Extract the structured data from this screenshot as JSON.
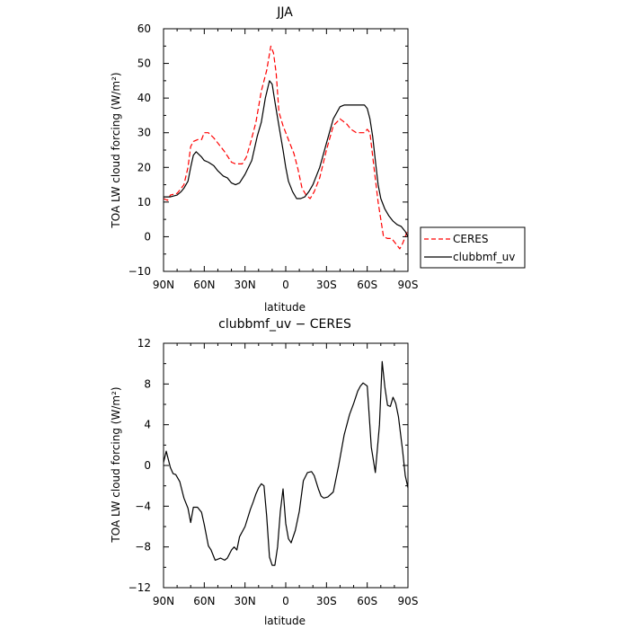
{
  "chart_data": [
    {
      "type": "line",
      "title": "JJA",
      "xlabel": "latitude",
      "ylabel": "TOA LW cloud forcing (W/m²)",
      "xlim": [
        90,
        -90
      ],
      "ylim": [
        -10,
        60
      ],
      "xticks": [
        {
          "value": 90,
          "label": "90N"
        },
        {
          "value": 60,
          "label": "60N"
        },
        {
          "value": 30,
          "label": "30N"
        },
        {
          "value": 0,
          "label": "0"
        },
        {
          "value": -30,
          "label": "30S"
        },
        {
          "value": -60,
          "label": "60S"
        },
        {
          "value": -90,
          "label": "90S"
        }
      ],
      "yticks": [
        -10,
        0,
        10,
        20,
        30,
        40,
        50,
        60
      ],
      "legend": "right, outside plot",
      "series": [
        {
          "name": "CERES",
          "color": "#ff0000",
          "dash": "dashed",
          "x": [
            90,
            87,
            85,
            80,
            75,
            72,
            70,
            68,
            65,
            62,
            60,
            57,
            53,
            48,
            45,
            40,
            37,
            32,
            29,
            26,
            22,
            18,
            14,
            11,
            9,
            7,
            5,
            2,
            0,
            -3,
            -6,
            -9,
            -12,
            -15,
            -18,
            -21,
            -25,
            -30,
            -35,
            -40,
            -45,
            -48,
            -52,
            -55,
            -58,
            -60,
            -62,
            -65,
            -68,
            -72,
            -75,
            -78,
            -81,
            -84,
            -86,
            -88,
            -90
          ],
          "y": [
            11,
            10.5,
            12,
            12.5,
            15,
            20,
            26,
            27.5,
            28,
            28,
            30,
            30,
            28.5,
            26,
            24.5,
            21.5,
            21,
            21,
            23,
            27,
            33,
            42,
            48,
            55,
            53,
            47,
            36,
            32,
            30,
            27,
            24,
            19.5,
            14,
            12,
            11,
            13,
            17,
            25,
            32,
            34,
            32.5,
            31,
            30,
            30,
            30,
            31,
            30,
            20,
            10,
            0,
            -0.5,
            -0.5,
            -2,
            -3.5,
            -2,
            0,
            2
          ]
        },
        {
          "name": "clubbmf_uv",
          "color": "#000000",
          "dash": "solid",
          "x": [
            90,
            85,
            80,
            77,
            75,
            72,
            70,
            68,
            66,
            62,
            60,
            57,
            53,
            50,
            46,
            43,
            40,
            37,
            34,
            30,
            25,
            21,
            18,
            15,
            12,
            10,
            8,
            5,
            2,
            0,
            -2,
            -5,
            -8,
            -11,
            -14,
            -17,
            -20,
            -25,
            -30,
            -35,
            -40,
            -43,
            -45,
            -48,
            -52,
            -55,
            -58,
            -60,
            -62,
            -64,
            -66,
            -68,
            -70,
            -73,
            -76,
            -79,
            -82,
            -85,
            -88,
            -90
          ],
          "y": [
            11.5,
            11.5,
            12,
            13,
            14,
            16,
            20,
            23.5,
            24.5,
            23,
            22,
            21.5,
            20.5,
            19,
            17.5,
            17,
            15.5,
            15,
            15.5,
            18,
            22,
            29,
            33,
            40,
            45,
            44,
            39,
            32,
            25,
            20,
            16,
            13,
            11,
            11,
            11.5,
            13,
            15,
            20,
            27,
            34,
            37.5,
            38,
            38,
            38,
            38,
            38,
            38,
            37,
            34,
            29,
            22,
            15,
            11,
            8,
            6,
            4.5,
            3.5,
            3,
            1.5,
            0
          ]
        }
      ]
    },
    {
      "type": "line",
      "title": "clubbmf_uv − CERES",
      "xlabel": "latitude",
      "ylabel": "TOA LW cloud forcing (W/m²)",
      "xlim": [
        90,
        -90
      ],
      "ylim": [
        -12,
        12
      ],
      "xticks": [
        {
          "value": 90,
          "label": "90N"
        },
        {
          "value": 60,
          "label": "60N"
        },
        {
          "value": 30,
          "label": "30N"
        },
        {
          "value": 0,
          "label": "0"
        },
        {
          "value": -30,
          "label": "30S"
        },
        {
          "value": -60,
          "label": "60S"
        },
        {
          "value": -90,
          "label": "90S"
        }
      ],
      "yticks": [
        -12,
        -8,
        -4,
        0,
        4,
        8,
        12
      ],
      "series": [
        {
          "color": "#000000",
          "x": [
            90,
            88,
            85,
            83,
            81,
            78,
            75,
            72,
            70,
            68,
            65,
            62,
            60,
            57,
            55,
            52,
            50,
            48,
            45,
            43,
            40,
            38,
            36,
            34,
            30,
            26,
            24,
            22,
            20,
            18,
            16,
            14,
            12,
            10,
            8,
            6,
            4,
            2,
            0,
            -2,
            -4,
            -7,
            -10,
            -13,
            -16,
            -19,
            -21,
            -24,
            -26,
            -28,
            -31,
            -35,
            -39,
            -43,
            -47,
            -50,
            -53,
            -55,
            -57,
            -60,
            -63,
            -66,
            -69,
            -71,
            -73,
            -75,
            -77,
            -79,
            -81,
            -83,
            -86,
            -88,
            -90
          ],
          "y": [
            0.3,
            1.4,
            -0.2,
            -0.8,
            -0.9,
            -1.6,
            -3.2,
            -4.2,
            -5.6,
            -4.1,
            -4.1,
            -4.6,
            -5.8,
            -7.9,
            -8.3,
            -9.3,
            -9.2,
            -9.1,
            -9.3,
            -9.1,
            -8.3,
            -8.0,
            -8.3,
            -7.0,
            -6.0,
            -4.3,
            -3.6,
            -2.8,
            -2.2,
            -1.8,
            -2.0,
            -5.0,
            -9.0,
            -9.8,
            -9.8,
            -8.0,
            -4.5,
            -2.3,
            -5.7,
            -7.2,
            -7.6,
            -6.4,
            -4.5,
            -1.5,
            -0.7,
            -0.6,
            -1.0,
            -2.3,
            -3.0,
            -3.2,
            -3.1,
            -2.6,
            0,
            3.0,
            5.0,
            6.1,
            7.3,
            7.8,
            8.1,
            7.8,
            1.8,
            -0.7,
            4.0,
            10.2,
            7.7,
            5.9,
            5.8,
            6.7,
            6.1,
            4.8,
            1.5,
            -1.0,
            -2.2
          ]
        }
      ]
    }
  ]
}
